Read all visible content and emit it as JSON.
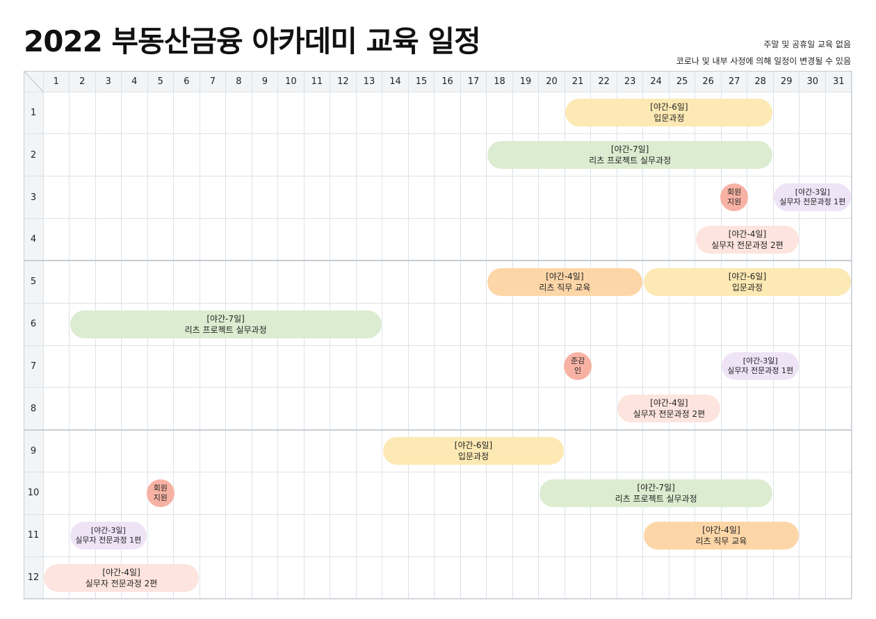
{
  "title": "2022 부동산금융 아카데미 교육 일정",
  "notes": [
    "주말 및 공휴일 교육 없음",
    "코로나 및 내부 사정에 의해 일정이 변경될 수 있음"
  ],
  "days": [
    "1",
    "2",
    "3",
    "4",
    "5",
    "6",
    "7",
    "8",
    "9",
    "10",
    "11",
    "12",
    "13",
    "14",
    "15",
    "16",
    "17",
    "18",
    "19",
    "20",
    "21",
    "22",
    "23",
    "24",
    "25",
    "26",
    "27",
    "28",
    "29",
    "30",
    "31"
  ],
  "months": [
    "1",
    "2",
    "3",
    "4",
    "5",
    "6",
    "7",
    "8",
    "9",
    "10",
    "11",
    "12"
  ],
  "colors": {
    "yellow": "#fde9b4",
    "green": "#dcecd0",
    "purple": "#efe3f6",
    "peach": "#fde4de",
    "orange": "#fdd6a8",
    "red": "#f7b2a4"
  },
  "events": [
    {
      "month": 1,
      "start": 21,
      "end": 28,
      "color": "yellow",
      "lines": [
        "[야간-6일]",
        "입문과정"
      ]
    },
    {
      "month": 2,
      "start": 18,
      "end": 28,
      "color": "green",
      "lines": [
        "[야간-7일]",
        "리츠 프로젝트 실무과정"
      ]
    },
    {
      "month": 3,
      "start": 27,
      "end": 27,
      "color": "red",
      "shape": "circle",
      "lines": [
        "회원",
        "지원"
      ]
    },
    {
      "month": 3,
      "start": 29,
      "end": 31,
      "color": "purple",
      "small": true,
      "lines": [
        "[야간-3일]",
        "실무자 전문과정 1편"
      ]
    },
    {
      "month": 4,
      "start": 26,
      "end": 29,
      "color": "peach",
      "lines": [
        "[야간-4일]",
        "실무자 전문과정 2편"
      ]
    },
    {
      "month": 5,
      "start": 18,
      "end": 23,
      "color": "orange",
      "lines": [
        "[야간-4일]",
        "리츠 직무 교육"
      ]
    },
    {
      "month": 5,
      "start": 24,
      "end": 31,
      "color": "yellow",
      "lines": [
        "[야간-6일]",
        "입문과정"
      ]
    },
    {
      "month": 6,
      "start": 2,
      "end": 13,
      "color": "green",
      "lines": [
        "[야간-7일]",
        "리츠 프로젝트 실무과정"
      ]
    },
    {
      "month": 7,
      "start": 21,
      "end": 21,
      "color": "red",
      "shape": "circle",
      "lines": [
        "준감",
        "인"
      ]
    },
    {
      "month": 7,
      "start": 27,
      "end": 29,
      "color": "purple",
      "small": true,
      "lines": [
        "[야간-3일]",
        "실무자 전문과정 1편"
      ]
    },
    {
      "month": 8,
      "start": 23,
      "end": 26,
      "color": "peach",
      "lines": [
        "[야간-4일]",
        "실무자 전문과정 2편"
      ]
    },
    {
      "month": 9,
      "start": 14,
      "end": 20,
      "color": "yellow",
      "lines": [
        "[야간-6일]",
        "입문과정"
      ]
    },
    {
      "month": 10,
      "start": 5,
      "end": 5,
      "color": "red",
      "shape": "circle",
      "lines": [
        "회원",
        "지원"
      ]
    },
    {
      "month": 10,
      "start": 20,
      "end": 28,
      "color": "green",
      "lines": [
        "[야간-7일]",
        "리츠 프로젝트 실무과정"
      ]
    },
    {
      "month": 11,
      "start": 2,
      "end": 4,
      "color": "purple",
      "small": true,
      "lines": [
        "[야간-3일]",
        "실무자 전문과정 1편"
      ]
    },
    {
      "month": 11,
      "start": 24,
      "end": 29,
      "color": "orange",
      "lines": [
        "[야간-4일]",
        "리츠 직무 교육"
      ]
    },
    {
      "month": 12,
      "start": 1,
      "end": 6,
      "color": "peach",
      "lines": [
        "[야간-4일]",
        "실무자 전문과정 2편"
      ]
    }
  ]
}
